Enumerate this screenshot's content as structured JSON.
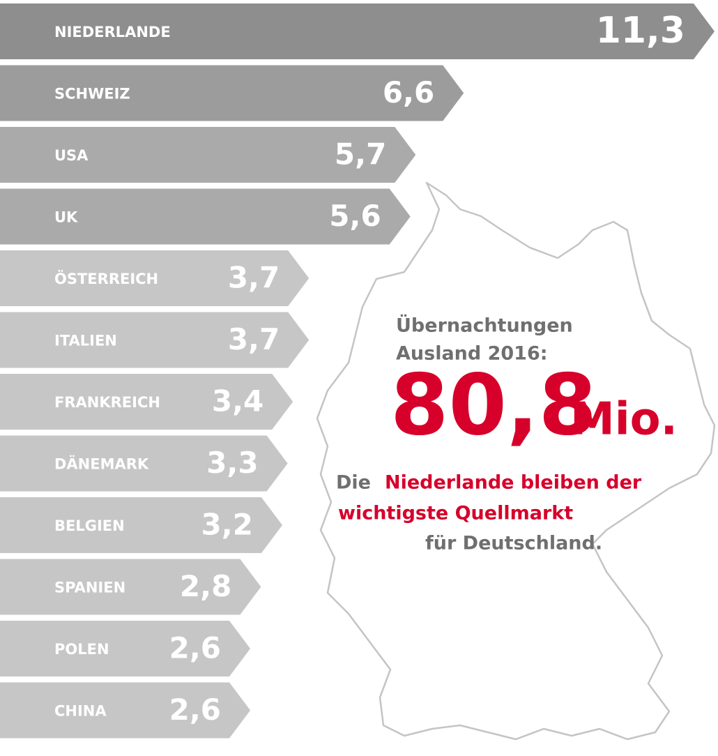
{
  "chart_data": {
    "type": "arrow-bar",
    "categories": [
      "NIEDERLANDE",
      "SCHWEIZ",
      "USA",
      "UK",
      "ÖSTERREICH",
      "ITALIEN",
      "FRANKREICH",
      "DÄNEMARK",
      "BELGIEN",
      "SPANIEN",
      "POLEN",
      "CHINA"
    ],
    "values": [
      11.3,
      6.6,
      5.7,
      5.6,
      3.7,
      3.7,
      3.4,
      3.3,
      3.2,
      2.8,
      2.6,
      2.6
    ],
    "value_labels": [
      "11,3",
      "6,6",
      "5,7",
      "5,6",
      "3,7",
      "3,7",
      "3,4",
      "3,3",
      "3,2",
      "2,8",
      "2,6",
      "2,6"
    ],
    "colors": [
      "#8e8e8e",
      "#9c9c9c",
      "#aaaaaa",
      "#aaaaaa",
      "#c6c6c6",
      "#c6c6c6",
      "#c6c6c6",
      "#c6c6c6",
      "#c6c6c6",
      "#c6c6c6",
      "#c6c6c6",
      "#c6c6c6"
    ],
    "annotations": {
      "heading": [
        "Übernachtungen",
        "Ausland 2016:"
      ],
      "total": "80,8",
      "unit": "Mio.",
      "note": [
        "Die",
        "Niederlande bleiben der",
        "wichtigste Quellmarkt",
        "für Deutschland."
      ]
    }
  }
}
